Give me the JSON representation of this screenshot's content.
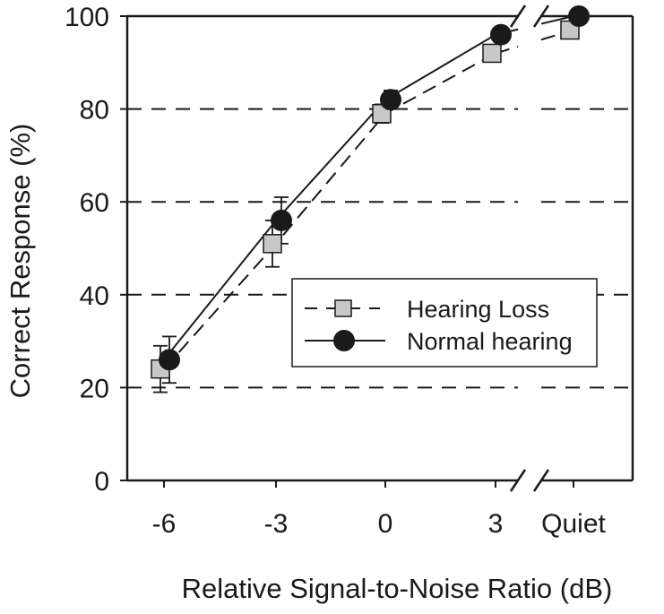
{
  "chart_data": {
    "type": "line",
    "xlabel": "Relative Signal-to-Noise Ratio (dB)",
    "ylabel": "Correct Response (%)",
    "categories": [
      "-6",
      "-3",
      "0",
      "3",
      "Quiet"
    ],
    "ylim": [
      0,
      100
    ],
    "yticks": [
      "0",
      "20",
      "40",
      "60",
      "80",
      "100"
    ],
    "grid": "horizontal dashed",
    "axis_break": "between 3 and Quiet",
    "legend_position": "center-right",
    "series": [
      {
        "name": "Hearing Loss",
        "marker": "square",
        "line_style": "dashed",
        "color": "#c8c8c8",
        "values": [
          24,
          51,
          79,
          92,
          97
        ],
        "errors": [
          5,
          5,
          2,
          1,
          1
        ]
      },
      {
        "name": "Normal hearing",
        "marker": "circle",
        "line_style": "solid",
        "color": "#1a1a1a",
        "values": [
          26,
          56,
          82,
          96,
          100
        ],
        "errors": [
          5,
          5,
          2,
          1,
          1
        ]
      }
    ]
  }
}
